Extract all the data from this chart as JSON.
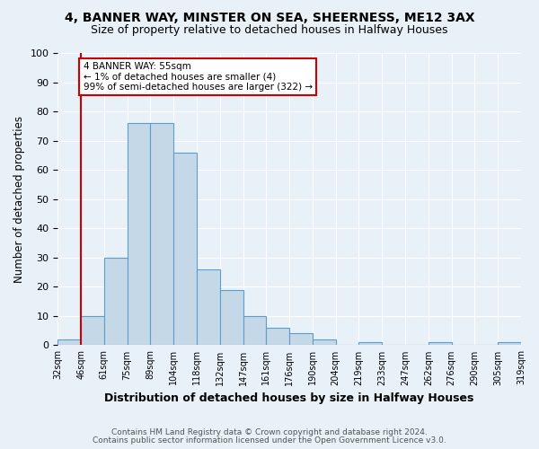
{
  "title1": "4, BANNER WAY, MINSTER ON SEA, SHEERNESS, ME12 3AX",
  "title2": "Size of property relative to detached houses in Halfway Houses",
  "xlabel": "Distribution of detached houses by size in Halfway Houses",
  "ylabel": "Number of detached properties",
  "tick_labels": [
    "32sqm",
    "46sqm",
    "61sqm",
    "75sqm",
    "89sqm",
    "104sqm",
    "118sqm",
    "132sqm",
    "147sqm",
    "161sqm",
    "176sqm",
    "190sqm",
    "204sqm",
    "219sqm",
    "233sqm",
    "247sqm",
    "262sqm",
    "276sqm",
    "290sqm",
    "305sqm",
    "319sqm"
  ],
  "bar_values": [
    2,
    10,
    30,
    76,
    76,
    66,
    26,
    19,
    10,
    6,
    4,
    2,
    0,
    1,
    0,
    0,
    1,
    0,
    0,
    1
  ],
  "bar_color": "#c5d8e8",
  "bar_edge_color": "#5a9ec9",
  "vline_color": "#cc0000",
  "annotation_line1": "4 BANNER WAY: 55sqm",
  "annotation_line2": "← 1% of detached houses are smaller (4)",
  "annotation_line3": "99% of semi-detached houses are larger (322) →",
  "footer1": "Contains HM Land Registry data © Crown copyright and database right 2024.",
  "footer2": "Contains public sector information licensed under the Open Government Licence v3.0.",
  "ylim": [
    0,
    100
  ],
  "background_color": "#e8f0f8",
  "axes_background": "#e8f0f8",
  "grid_color": "#ffffff",
  "title1_fontsize": 10,
  "title2_fontsize": 9,
  "xlabel_fontsize": 9,
  "ylabel_fontsize": 8.5,
  "footer_fontsize": 6.5
}
